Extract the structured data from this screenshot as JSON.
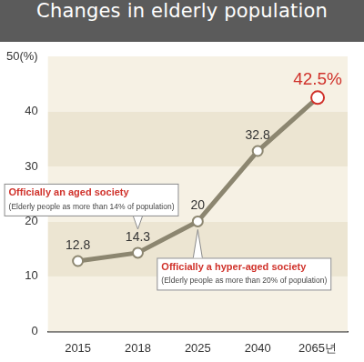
{
  "chart_data": {
    "type": "line",
    "title": "Changes in elderly population",
    "categories": [
      "2015",
      "2018",
      "2025",
      "2040",
      "2065년"
    ],
    "values": [
      12.8,
      14.3,
      20,
      32.8,
      42.5
    ],
    "value_labels": [
      "12.8",
      "14.3",
      "20",
      "32.8",
      "42.5%"
    ],
    "data_labels": true,
    "color": "#8c8670",
    "marker": "circle",
    "ylim": [
      0,
      50
    ],
    "yticks": [
      0,
      10,
      20,
      30,
      40,
      {
        "value": 50,
        "label": "50(%)"
      }
    ],
    "grid": true,
    "annotations": [
      {
        "category": "2018",
        "text": "Officially an aged society",
        "note": "(Elderly people as more than 14% of population)"
      },
      {
        "category": "2025",
        "text": "Officially a hyper-aged society",
        "note": "(Elderly people as more than 20% of population)"
      }
    ]
  }
}
